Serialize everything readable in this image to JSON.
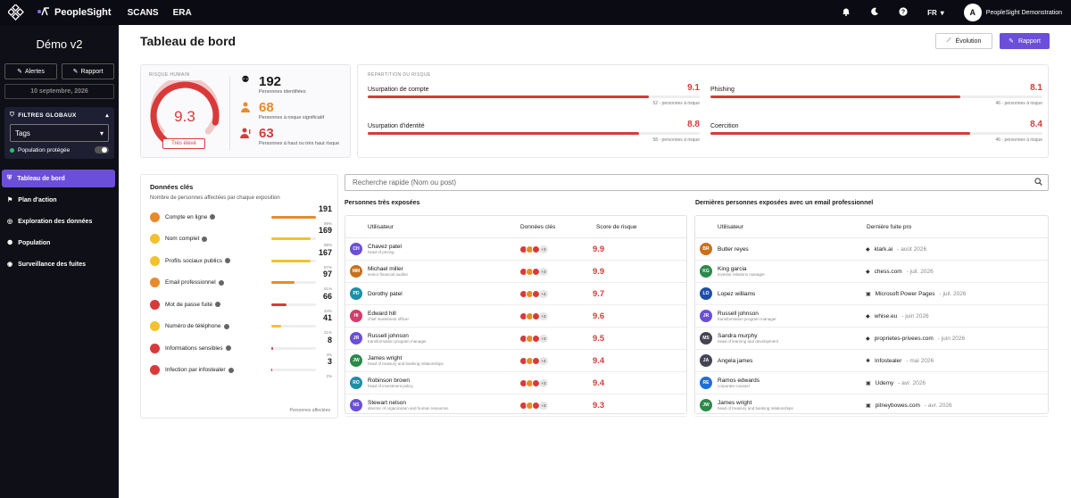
{
  "topbar": {
    "brand": "PeopleSight",
    "nav": [
      "SCANS",
      "ERA"
    ],
    "lang": "FR",
    "user_initial": "A",
    "user_name": "PeopleSight Demonstration"
  },
  "sidebar": {
    "title": "Démo v2",
    "alerts_label": "Alertes",
    "report_label": "Rapport",
    "date": "10 septembre, 2026",
    "filters_title": "FILTRES GLOBAUX",
    "tags_select": "Tags",
    "protected_label": "Population protégée",
    "nav": [
      {
        "label": "Tableau de bord",
        "icon": "shield-icon"
      },
      {
        "label": "Plan d'action",
        "icon": "flag-icon"
      },
      {
        "label": "Exploration des données",
        "icon": "compass-icon"
      },
      {
        "label": "Population",
        "icon": "users-icon"
      },
      {
        "label": "Surveillance des fuites",
        "icon": "radar-icon"
      }
    ]
  },
  "header": {
    "title": "Tableau de bord",
    "evolution_label": "Évolution",
    "report_label": "Rapport"
  },
  "human_risk": {
    "label": "RISQUE HUMAIN",
    "score": "9.3",
    "score_value": 9.3,
    "level": "Très élevé",
    "stats": [
      {
        "value": "192",
        "desc": "Personnes identifiées",
        "color": "#111111"
      },
      {
        "value": "68",
        "desc": "Personnes à risque significatif",
        "color": "#e88a2a"
      },
      {
        "value": "63",
        "desc": "Personnes à haut ou très haut risque",
        "color": "#d83a3a"
      }
    ]
  },
  "risk_split": {
    "label": "RÉPARTITION DU RISQUE",
    "items": [
      {
        "name": "Usurpation de compte",
        "score": "9.1",
        "fraction": 0.91,
        "foot": "52 - personnes à risque"
      },
      {
        "name": "Phishing",
        "score": "8.1",
        "fraction": 0.81,
        "foot": "46 - personnes à risque"
      },
      {
        "name": "Usurpation d'identité",
        "score": "8.8",
        "fraction": 0.88,
        "foot": "58 - personnes à risque"
      },
      {
        "name": "Coercition",
        "score": "8.4",
        "fraction": 0.84,
        "foot": "46 - personnes à risque"
      }
    ]
  },
  "key_data": {
    "title": "Données clés",
    "subtitle": "Nombre de personnes affectées par chaque exposition",
    "footer": "Personnes affectées",
    "items": [
      {
        "label": "Compte en ligne",
        "count": "191",
        "pct": "99%",
        "fraction": 0.99,
        "color": "#e88a2a"
      },
      {
        "label": "Nom complet",
        "count": "169",
        "pct": "88%",
        "fraction": 0.88,
        "color": "#f2c12e"
      },
      {
        "label": "Profils sociaux publics",
        "count": "167",
        "pct": "87%",
        "fraction": 0.87,
        "color": "#f2c12e"
      },
      {
        "label": "Email professionnel",
        "count": "97",
        "pct": "51%",
        "fraction": 0.51,
        "color": "#e88a2a"
      },
      {
        "label": "Mot de passe fuité",
        "count": "66",
        "pct": "34%",
        "fraction": 0.34,
        "color": "#d83a3a"
      },
      {
        "label": "Numéro de téléphone",
        "count": "41",
        "pct": "21%",
        "fraction": 0.21,
        "color": "#f2c12e"
      },
      {
        "label": "Informations sensibles",
        "count": "8",
        "pct": "4%",
        "fraction": 0.04,
        "color": "#d83a3a"
      },
      {
        "label": "Infection par infostealer",
        "count": "3",
        "pct": "2%",
        "fraction": 0.02,
        "color": "#d83a3a"
      }
    ]
  },
  "search": {
    "placeholder": "Recherche rapide (Nom ou post)"
  },
  "exposed": {
    "title": "Personnes très exposées",
    "col_user": "Utilisateur",
    "col_data": "Données clés",
    "col_score": "Score de risque",
    "rows": [
      {
        "initials": "CH",
        "name": "Chavez patel",
        "role": "head of pricing",
        "more": "+3",
        "score": "9.9",
        "color": "#6b4fd8"
      },
      {
        "initials": "MM",
        "name": "Michael miller",
        "role": "senior financial auditor",
        "more": "+3",
        "score": "9.9",
        "color": "#c7721f"
      },
      {
        "initials": "PD",
        "name": "Dorothy patel",
        "role": "",
        "more": "+4",
        "score": "9.7",
        "color": "#1e8fa8"
      },
      {
        "initials": "HI",
        "name": "Edward hill",
        "role": "chief investment officer",
        "more": "+3",
        "score": "9.6",
        "color": "#d83a6a"
      },
      {
        "initials": "JR",
        "name": "Russell johnson",
        "role": "transformation program manager",
        "more": "+3",
        "score": "9.5",
        "color": "#6b4fd8"
      },
      {
        "initials": "JW",
        "name": "James wright",
        "role": "head of treasury and banking relationships",
        "more": "+4",
        "score": "9.4",
        "color": "#2a8a4a"
      },
      {
        "initials": "RO",
        "name": "Robinson brown",
        "role": "head of investment policy",
        "more": "+3",
        "score": "9.4",
        "color": "#1e8fa8"
      },
      {
        "initials": "NS",
        "name": "Stewart nelson",
        "role": "director of organization and human resources",
        "more": "+3",
        "score": "9.3",
        "color": "#6b4fd8"
      }
    ]
  },
  "leaks": {
    "title": "Dernières personnes exposées avec un email professionnel",
    "col_user": "Utilisateur",
    "col_leak": "Dernière fuite pro",
    "rows": [
      {
        "initials": "BR",
        "name": "Butler reyes",
        "role": "",
        "source": "klark.ai",
        "date": "- août 2026",
        "icon": "drop-icon",
        "color": "#c7721f"
      },
      {
        "initials": "KG",
        "name": "King garcia",
        "role": "investor relations manager",
        "source": "chess.com",
        "date": "- juil. 2026",
        "icon": "drop-icon",
        "color": "#2a8a4a"
      },
      {
        "initials": "LO",
        "name": "Lopez williams",
        "role": "",
        "source": "Microsoft Power Pages",
        "date": "- juil. 2026",
        "icon": "lock-icon",
        "color": "#1e4fa8"
      },
      {
        "initials": "JR",
        "name": "Russell johnson",
        "role": "transformation program manager",
        "source": "whise.eu",
        "date": "- juin 2026",
        "icon": "drop-icon",
        "color": "#6b4fd8"
      },
      {
        "initials": "MS",
        "name": "Sandra murphy",
        "role": "head of learning and development",
        "source": "proprietes-privees.com",
        "date": "- juin 2026",
        "icon": "drop-icon",
        "color": "#444455"
      },
      {
        "initials": "JA",
        "name": "Angela james",
        "role": "",
        "source": "Infostealer",
        "date": "- mai 2026",
        "icon": "bug-icon",
        "color": "#444455"
      },
      {
        "initials": "RE",
        "name": "Ramos edwards",
        "role": "corporate counsel",
        "source": "Udemy",
        "date": "- avr. 2026",
        "icon": "lock-icon",
        "color": "#1e6fd8"
      },
      {
        "initials": "JW",
        "name": "James wright",
        "role": "head of treasury and banking relationships",
        "source": "pitneybowes.com",
        "date": "- avr. 2026",
        "icon": "lock-icon",
        "color": "#2a8a4a"
      }
    ]
  }
}
